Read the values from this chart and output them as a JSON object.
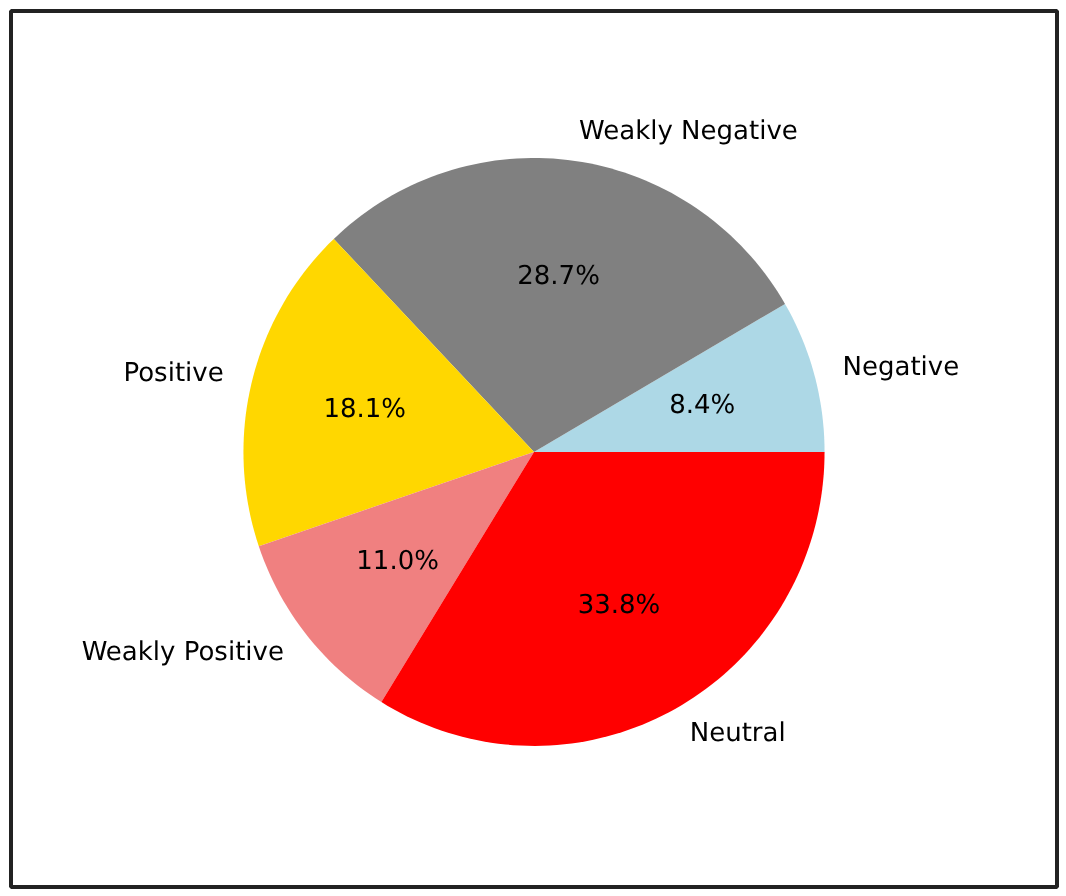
{
  "chart_data": {
    "type": "pie",
    "categories": [
      "Negative",
      "Weakly Negative",
      "Positive",
      "Weakly Positive",
      "Neutral"
    ],
    "values": [
      8.4,
      28.7,
      18.1,
      11.0,
      33.8
    ],
    "colors": [
      "#add8e6",
      "#808080",
      "#ffd700",
      "#f08080",
      "#ff0000"
    ],
    "value_labels": [
      "8.4%",
      "28.7%",
      "18.1%",
      "11.0%",
      "33.8%"
    ]
  }
}
